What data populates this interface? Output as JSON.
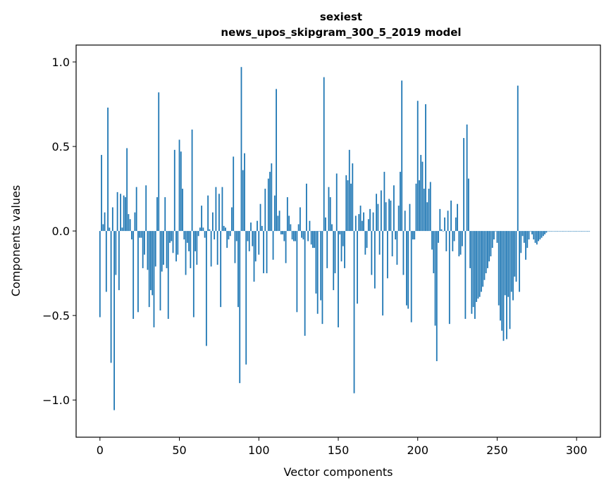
{
  "chart_data": {
    "type": "bar",
    "title": "sexiest",
    "subtitle": "news_upos_skipgram_300_5_2019 model",
    "xlabel": "Vector components",
    "ylabel": "Components values",
    "xlim": [
      -15,
      315
    ],
    "ylim": [
      -1.22,
      1.1
    ],
    "xticks": [
      0,
      50,
      100,
      150,
      200,
      250,
      300
    ],
    "xtick_labels": [
      "0",
      "50",
      "100",
      "150",
      "200",
      "250",
      "300"
    ],
    "yticks": [
      -1.0,
      -0.5,
      0.0,
      0.5,
      1.0
    ],
    "ytick_labels": [
      "−1.0",
      "−0.5",
      "0.0",
      "0.5",
      "1.0"
    ],
    "bar_color": "#1f77b4",
    "grid": false,
    "values": [
      -0.51,
      0.45,
      0.04,
      0.11,
      -0.36,
      0.73,
      0.02,
      -0.78,
      0.14,
      -1.06,
      -0.26,
      0.23,
      -0.35,
      0.22,
      0.02,
      0.21,
      0.2,
      0.49,
      0.1,
      0.07,
      -0.05,
      -0.52,
      0.11,
      0.26,
      -0.48,
      -0.04,
      -0.04,
      -0.22,
      -0.14,
      0.27,
      -0.23,
      -0.45,
      -0.35,
      -0.38,
      -0.57,
      -0.21,
      0.2,
      0.82,
      -0.47,
      -0.24,
      -0.2,
      0.2,
      -0.22,
      -0.52,
      -0.07,
      -0.06,
      -0.13,
      0.48,
      -0.18,
      -0.14,
      0.54,
      0.47,
      0.25,
      -0.05,
      -0.26,
      -0.07,
      -0.12,
      -0.22,
      0.6,
      -0.51,
      -0.12,
      -0.2,
      -0.03,
      0.02,
      0.15,
      0.02,
      -0.04,
      -0.68,
      0.21,
      0.01,
      -0.21,
      0.11,
      -0.05,
      0.26,
      -0.2,
      0.22,
      -0.45,
      0.26,
      0.03,
      0.02,
      -0.1,
      -0.05,
      -0.03,
      0.14,
      0.44,
      -0.19,
      -0.06,
      -0.45,
      -0.9,
      0.97,
      0.36,
      0.46,
      -0.79,
      -0.06,
      -0.12,
      0.05,
      -0.09,
      -0.3,
      -0.18,
      0.06,
      -0.14,
      0.16,
      0.03,
      -0.25,
      0.25,
      -0.25,
      0.31,
      0.35,
      0.4,
      -0.17,
      0.21,
      0.84,
      0.09,
      0.12,
      -0.02,
      -0.02,
      -0.06,
      -0.19,
      0.2,
      0.09,
      0.04,
      -0.05,
      -0.06,
      -0.06,
      -0.48,
      0.04,
      0.14,
      -0.04,
      -0.05,
      -0.62,
      0.28,
      -0.06,
      0.06,
      -0.08,
      -0.1,
      -0.1,
      -0.37,
      -0.49,
      0.0,
      -0.41,
      -0.55,
      0.91,
      0.08,
      -0.22,
      0.26,
      0.2,
      0.04,
      -0.35,
      -0.25,
      0.34,
      -0.57,
      -0.02,
      -0.18,
      -0.09,
      -0.22,
      0.33,
      0.3,
      0.48,
      0.28,
      0.4,
      -0.96,
      0.09,
      -0.43,
      0.1,
      0.15,
      0.06,
      0.11,
      -0.14,
      -0.1,
      0.07,
      0.13,
      -0.26,
      0.11,
      -0.34,
      0.22,
      0.16,
      -0.14,
      0.24,
      -0.5,
      0.35,
      0.17,
      -0.28,
      0.19,
      0.18,
      -0.15,
      0.27,
      -0.05,
      -0.2,
      0.15,
      0.35,
      0.89,
      -0.26,
      0.12,
      -0.44,
      -0.46,
      0.16,
      -0.54,
      -0.05,
      -0.05,
      0.28,
      0.77,
      0.3,
      0.45,
      0.41,
      0.25,
      0.75,
      0.17,
      0.25,
      0.29,
      -0.11,
      -0.25,
      -0.56,
      -0.77,
      -0.07,
      0.13,
      0.01,
      0.0,
      0.08,
      -0.12,
      0.12,
      -0.55,
      0.18,
      -0.12,
      -0.06,
      0.08,
      0.16,
      -0.15,
      -0.14,
      -0.09,
      0.55,
      -0.52,
      0.63,
      0.31,
      -0.22,
      -0.49,
      -0.45,
      -0.52,
      -0.42,
      -0.4,
      -0.39,
      -0.36,
      -0.33,
      -0.29,
      -0.25,
      -0.22,
      -0.18,
      -0.15,
      -0.1,
      -0.05,
      0.0,
      -0.07,
      -0.44,
      -0.53,
      -0.59,
      -0.65,
      -0.38,
      -0.64,
      -0.39,
      -0.58,
      -0.36,
      -0.41,
      -0.27,
      -0.3,
      0.86,
      -0.36,
      -0.13,
      -0.03,
      -0.07,
      -0.17,
      -0.1,
      -0.05,
      0.0,
      -0.02,
      -0.05,
      -0.07,
      -0.08,
      -0.06,
      -0.05,
      -0.04,
      -0.03,
      -0.02,
      -0.01,
      0.0,
      0.0,
      0.0,
      0.0,
      0.0,
      0.0,
      0.0,
      0.0,
      0.0,
      0.0,
      0.0,
      0.0,
      0.0,
      0.0,
      0.0,
      0.0,
      0.0,
      0.0,
      0.0,
      0.0,
      0.0,
      0.0,
      0.0,
      0.0,
      0.0,
      0.0,
      0.0
    ]
  }
}
